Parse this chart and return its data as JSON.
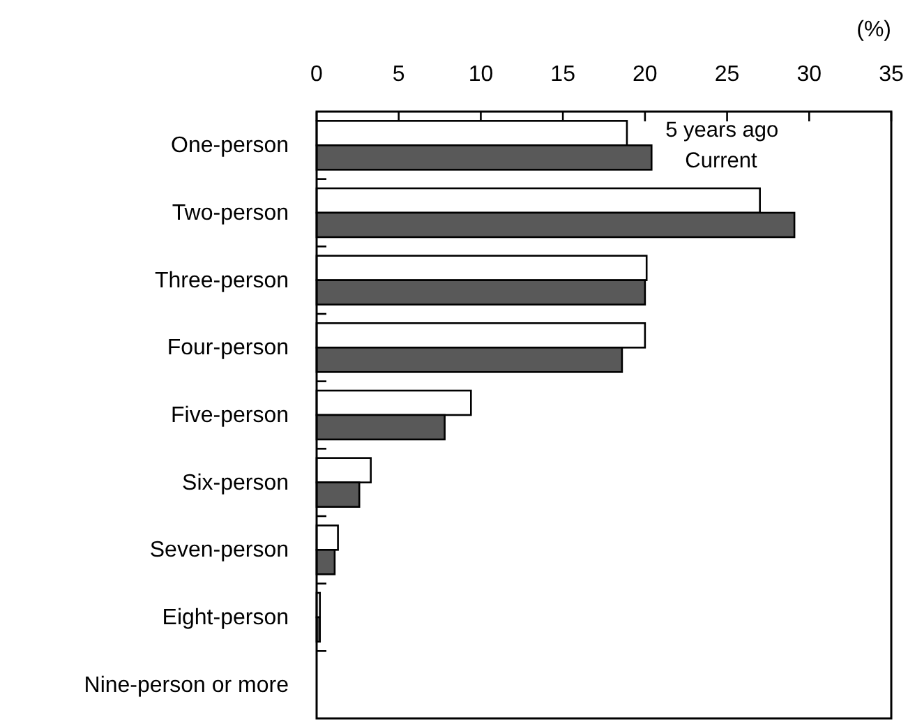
{
  "chart_data": {
    "type": "bar",
    "orientation": "horizontal",
    "xlabel": "(%)",
    "categories": [
      "One-person",
      "Two-person",
      "Three-person",
      "Four-person",
      "Five-person",
      "Six-person",
      "Seven-person",
      "Eight-person",
      "Nine-person or more"
    ],
    "series": [
      {
        "name": "5 years ago",
        "color": "#ffffff",
        "values": [
          18.9,
          27.0,
          20.1,
          20.0,
          9.4,
          3.3,
          1.3,
          0.2,
          null
        ]
      },
      {
        "name": "Current",
        "color": "#595959",
        "values": [
          20.4,
          29.1,
          20.0,
          18.6,
          7.8,
          2.6,
          1.1,
          0.2,
          null
        ]
      }
    ],
    "xlim": [
      0,
      35
    ],
    "xticks": [
      0,
      5,
      10,
      15,
      20,
      25,
      30,
      35
    ],
    "grid": false
  }
}
